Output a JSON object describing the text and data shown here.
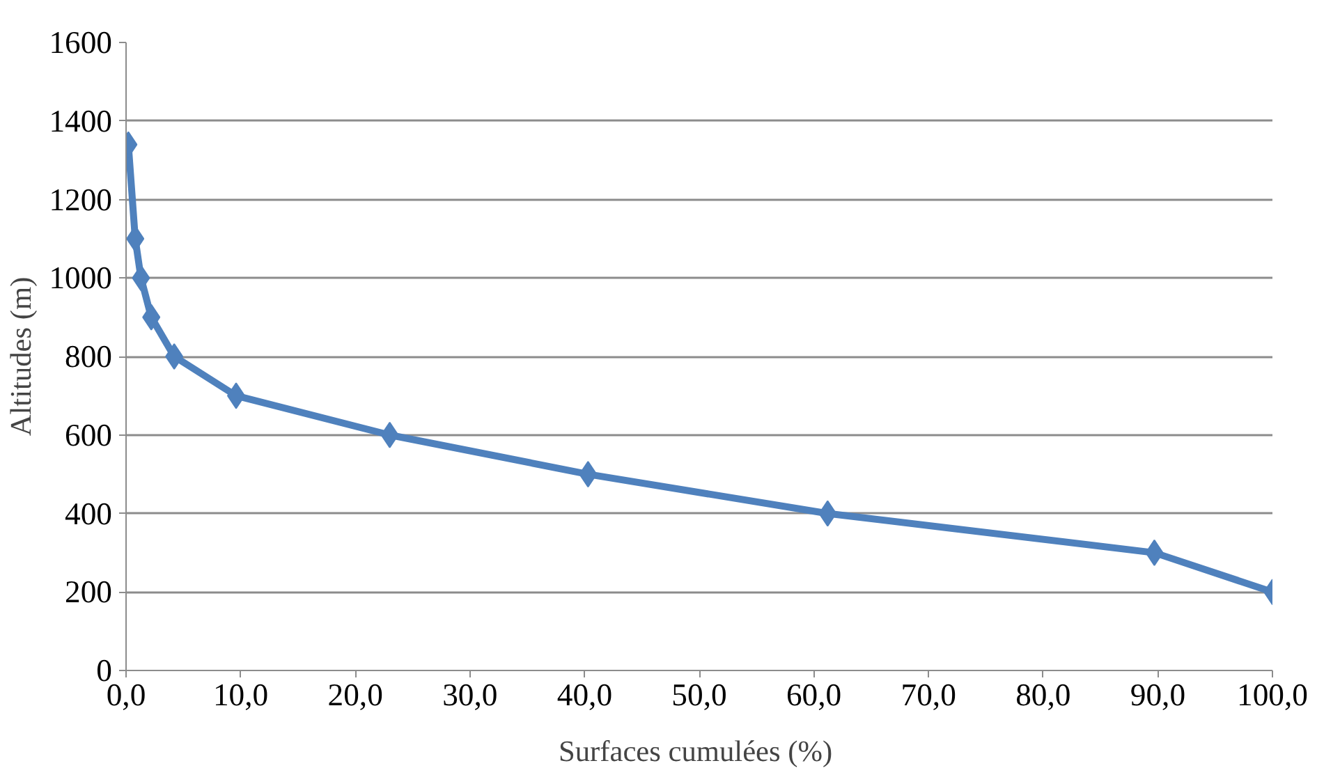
{
  "chart_data": {
    "type": "line",
    "xlabel": "Surfaces cumulées  (%)",
    "ylabel": "Altitudes (m)",
    "x": [
      0.2,
      0.8,
      1.3,
      2.2,
      4.2,
      9.6,
      23,
      40.3,
      61.2,
      89.7,
      100
    ],
    "series": [
      {
        "color": "#4f81bd",
        "values": [
          1340,
          1100,
          1000,
          900,
          800,
          700,
          600,
          500,
          400,
          300,
          200
        ]
      }
    ],
    "xlim": [
      0,
      100
    ],
    "ylim": [
      0,
      1600
    ],
    "xticks": [
      {
        "value": 0,
        "label": "0,0"
      },
      {
        "value": 10,
        "label": "10,0"
      },
      {
        "value": 20,
        "label": "20,0"
      },
      {
        "value": 30,
        "label": "30,0"
      },
      {
        "value": 40,
        "label": "40,0"
      },
      {
        "value": 50,
        "label": "50,0"
      },
      {
        "value": 60,
        "label": "60,0"
      },
      {
        "value": 70,
        "label": "70,0"
      },
      {
        "value": 80,
        "label": "80,0"
      },
      {
        "value": 90,
        "label": "90,0"
      },
      {
        "value": 100,
        "label": "100,0"
      }
    ],
    "yticks": [
      0,
      200,
      400,
      600,
      800,
      1000,
      1200,
      1400,
      1600
    ],
    "grid": "y",
    "marker": "diamond",
    "line_style": "solid"
  }
}
